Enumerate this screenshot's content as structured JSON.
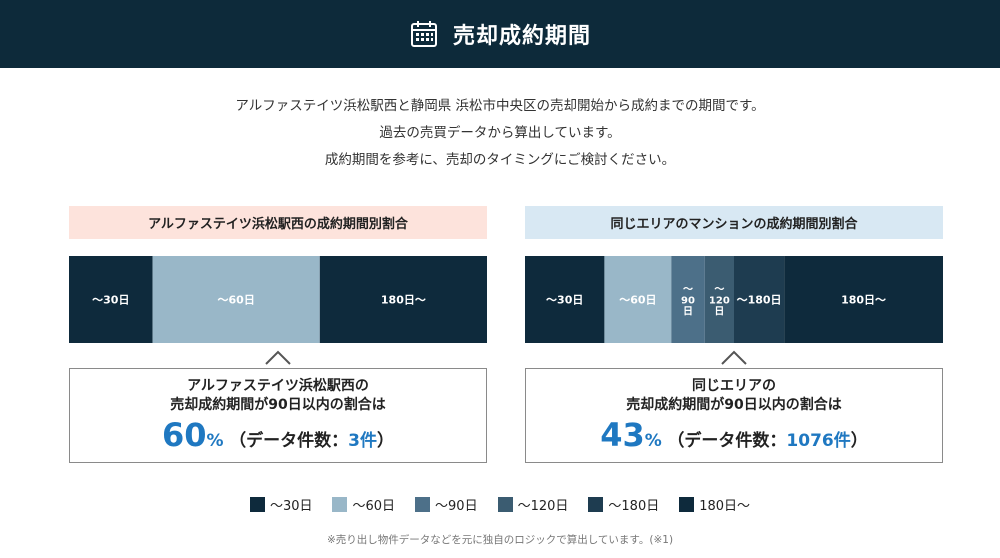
{
  "header": {
    "title": "売却成約期間",
    "icon": "calendar-icon"
  },
  "intro": {
    "lines": [
      "アルファステイツ浜松駅西と静岡県 浜松市中央区の売却開始から成約までの期間です。",
      "過去の売買データから算出しています。",
      "成約期間を参考に、売却のタイミングにご検討ください。"
    ]
  },
  "colors": {
    "header_bg": "#0d2a3a",
    "accent": "#1f78c1",
    "left_title_bg": "#fde3dc",
    "right_title_bg": "#d8e8f3"
  },
  "legend": [
    {
      "label": "〜30日",
      "color": "#0e2a3c"
    },
    {
      "label": "〜60日",
      "color": "#99b7c8"
    },
    {
      "label": "〜90日",
      "color": "#4d7089"
    },
    {
      "label": "〜120日",
      "color": "#3b5c71"
    },
    {
      "label": "〜180日",
      "color": "#1e3c50"
    },
    {
      "label": "180日〜",
      "color": "#0e2a3c"
    }
  ],
  "chart_data": [
    {
      "type": "bar",
      "orientation": "stacked-horizontal-100",
      "title": "アルファステイツ浜松駅西の成約期間別割合",
      "segments": [
        {
          "label": "〜30日",
          "display_label": "〜30日",
          "value": 20,
          "color": "#0e2a3c"
        },
        {
          "label": "〜60日",
          "display_label": "〜60日",
          "value": 40,
          "color": "#99b7c8"
        },
        {
          "label": "180日〜",
          "display_label": "180日〜",
          "value": 40,
          "color": "#0e2a3c"
        }
      ],
      "result": {
        "line1": "アルファステイツ浜松駅西の",
        "line2": "売却成約期間が90日以内の割合は",
        "percent": "60",
        "percent_unit": "%",
        "count_prefix": "（データ件数：",
        "count": "3件",
        "count_suffix": "）"
      }
    },
    {
      "type": "bar",
      "orientation": "stacked-horizontal-100",
      "title": "同じエリアのマンションの成約期間別割合",
      "segments": [
        {
          "label": "〜30日",
          "display_label": "〜30日",
          "value": 19,
          "color": "#0e2a3c"
        },
        {
          "label": "〜60日",
          "display_label": "〜60日",
          "value": 16,
          "color": "#99b7c8"
        },
        {
          "label": "〜90日",
          "display_label": "〜90日",
          "value": 8,
          "color": "#4d7089"
        },
        {
          "label": "〜120日",
          "display_label": "〜120日",
          "value": 7,
          "color": "#3b5c71"
        },
        {
          "label": "〜180日",
          "display_label": "〜180日",
          "value": 12,
          "color": "#1e3c50"
        },
        {
          "label": "180日〜",
          "display_label": "180日〜",
          "value": 38,
          "color": "#0e2a3c"
        }
      ],
      "result": {
        "line1": "同じエリアの",
        "line2": "売却成約期間が90日以内の割合は",
        "percent": "43",
        "percent_unit": "%",
        "count_prefix": "（データ件数：",
        "count": "1076件",
        "count_suffix": "）"
      }
    }
  ],
  "footnote": "※売り出し物件データなどを元に独自のロジックで算出しています。(※1)"
}
